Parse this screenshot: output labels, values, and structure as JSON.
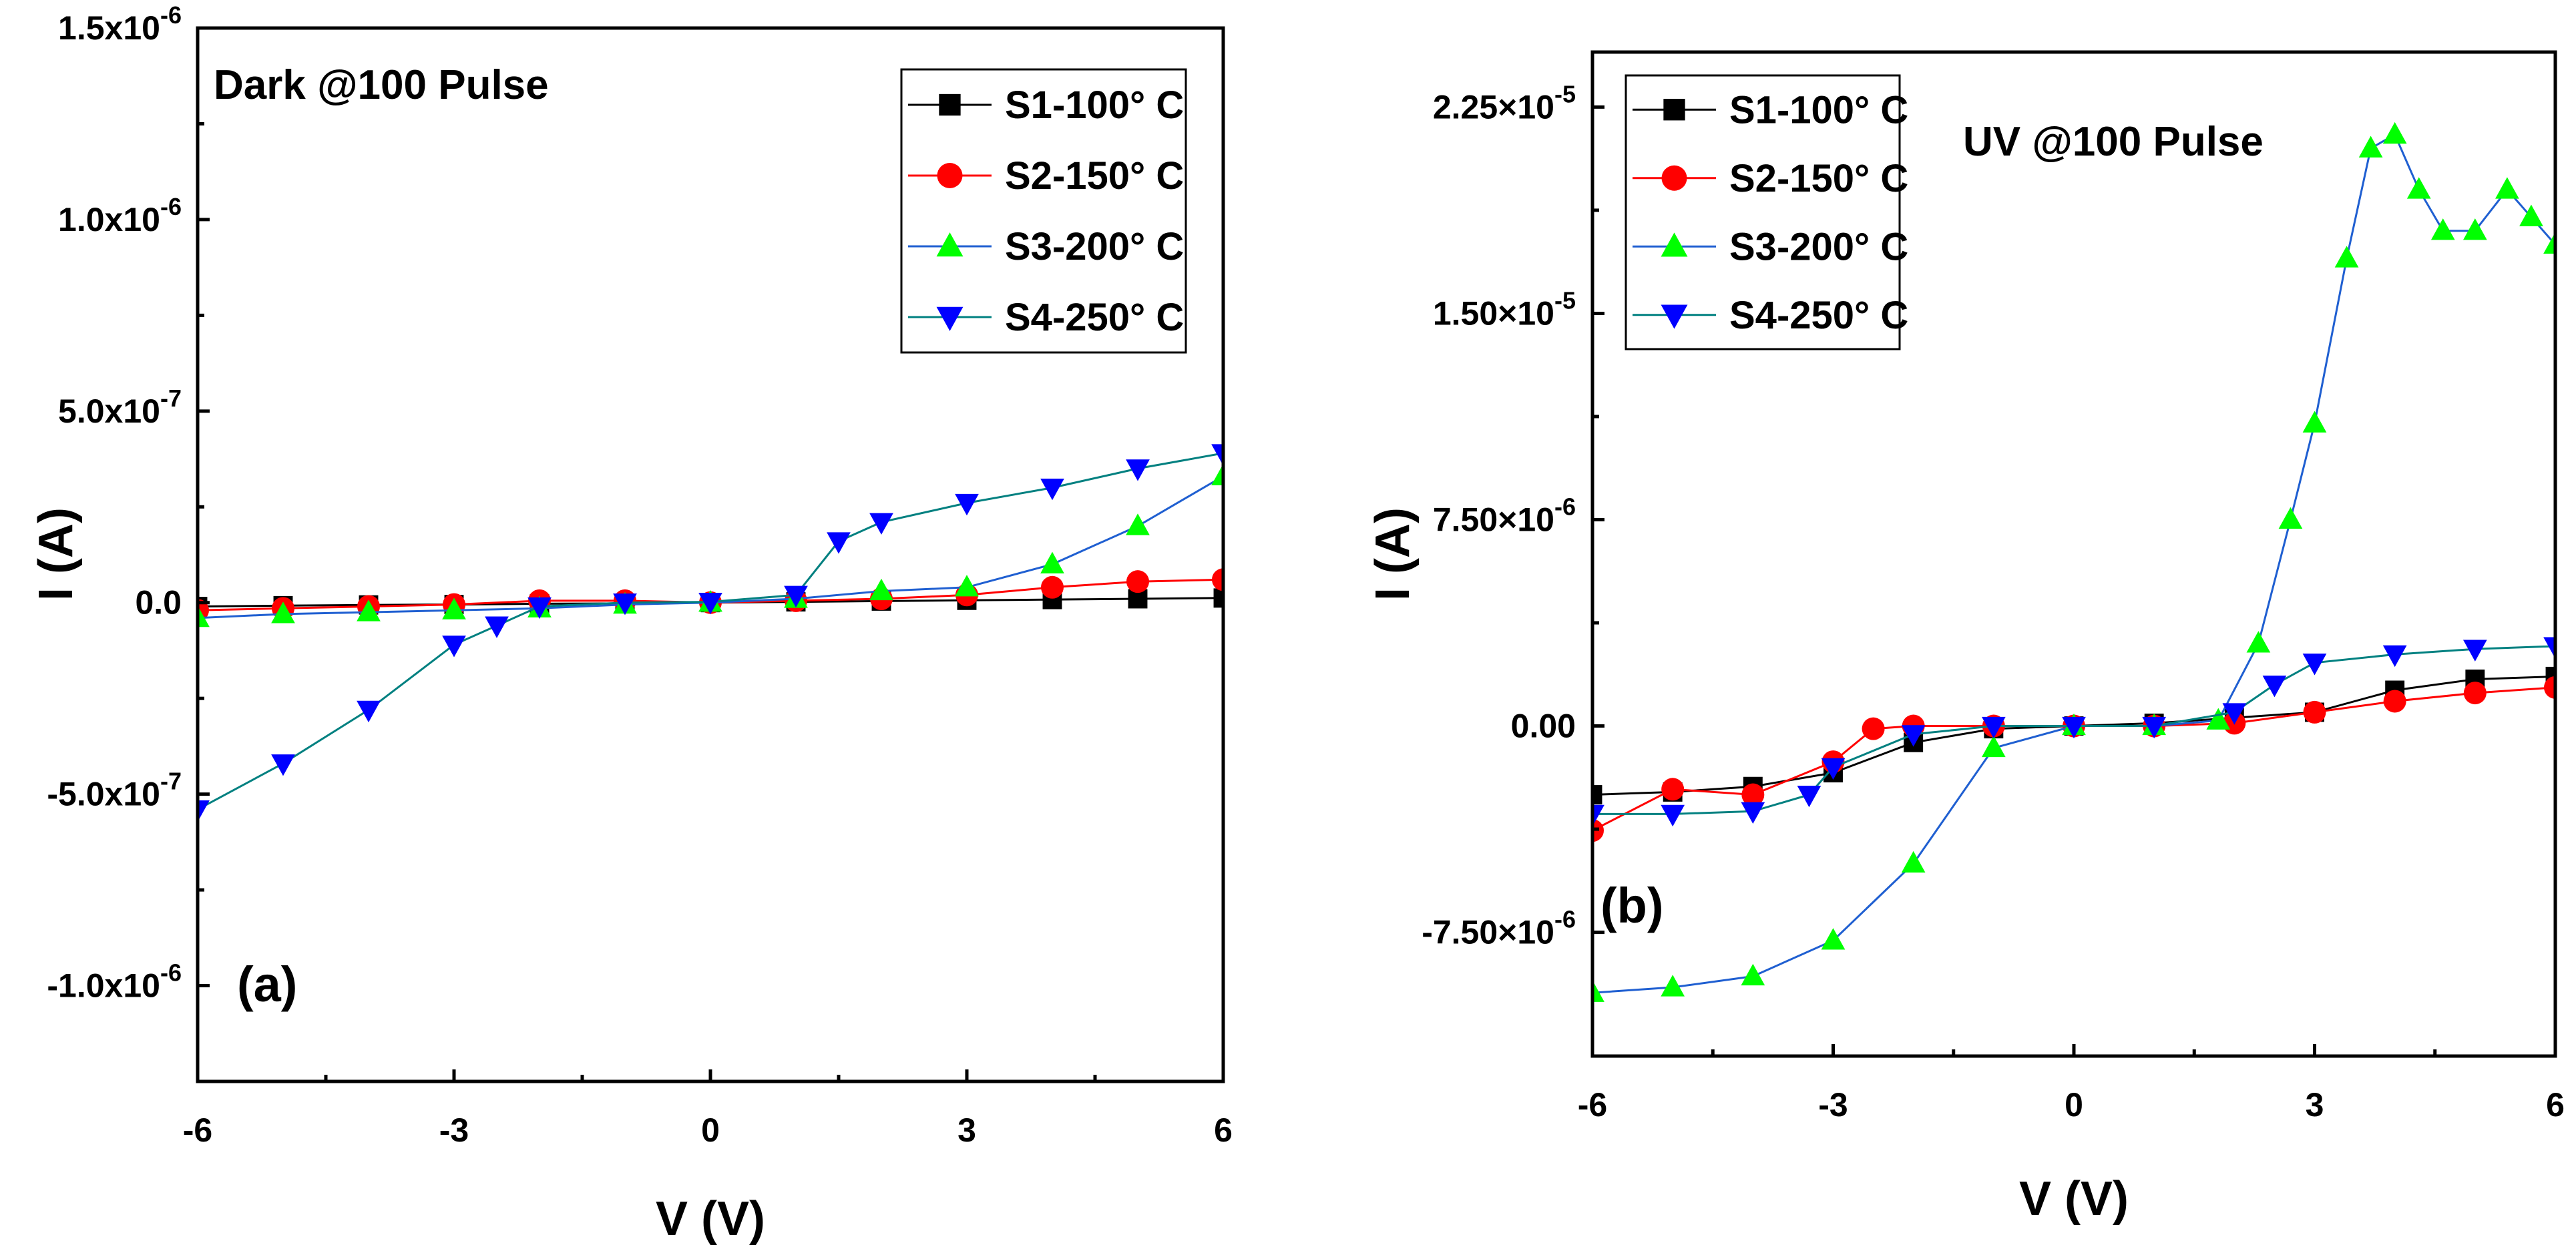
{
  "chart_data": [
    {
      "type": "line",
      "panel": "(a)",
      "annotation": "Dark @100 Pulse",
      "xlabel": "V (V)",
      "ylabel": "I (A)",
      "xlim": [
        -6,
        6
      ],
      "ylim": [
        -1.25e-06,
        1.5e-06
      ],
      "xticks": [
        {
          "value": -6,
          "label": "-6"
        },
        {
          "value": -3,
          "label": "-3"
        },
        {
          "value": 0,
          "label": "0"
        },
        {
          "value": 3,
          "label": "3"
        },
        {
          "value": 6,
          "label": "6"
        }
      ],
      "yticks": [
        {
          "value": 1.5e-06,
          "label": "1.5x10-6"
        },
        {
          "value": 1e-06,
          "label": "1.0x10-6"
        },
        {
          "value": 5e-07,
          "label": "5.0x10-7"
        },
        {
          "value": 0,
          "label": "0.0"
        },
        {
          "value": -5e-07,
          "label": "-5.0x10-7"
        },
        {
          "value": -1e-06,
          "label": "-1.0x10-6"
        }
      ],
      "legend_position": "top-right",
      "series": [
        {
          "name": "S1-100° C",
          "marker": "square",
          "color": "#000000",
          "line_color": "#000000",
          "x": [
            -6,
            -5,
            -4,
            -3,
            -2,
            -1,
            0,
            1,
            2,
            3,
            4,
            5,
            6
          ],
          "y": [
            -1e-08,
            -8e-09,
            -6e-09,
            -5e-09,
            -3e-09,
            -2e-09,
            0,
            2e-09,
            4e-09,
            6e-09,
            8e-09,
            1e-08,
            1.2e-08
          ]
        },
        {
          "name": "S2-150° C",
          "marker": "circle",
          "color": "#ff0000",
          "line_color": "#ff0000",
          "x": [
            -6,
            -5,
            -4,
            -3,
            -2,
            -1,
            0,
            1,
            2,
            3,
            4,
            5,
            6
          ],
          "y": [
            -2e-08,
            -1.5e-08,
            -1e-08,
            -5e-09,
            5e-09,
            5e-09,
            0,
            5e-09,
            1e-08,
            2e-08,
            4e-08,
            5.5e-08,
            6e-08
          ]
        },
        {
          "name": "S3-200° C",
          "marker": "triangle-up",
          "color": "#00ff00",
          "line_color": "#1f5fd1",
          "x": [
            -6,
            -5,
            -4,
            -3,
            -2,
            -1,
            0,
            1,
            2,
            3,
            4,
            5,
            6
          ],
          "y": [
            -4e-08,
            -3e-08,
            -2.5e-08,
            -2e-08,
            -1.5e-08,
            -5e-09,
            0,
            1e-08,
            3e-08,
            4e-08,
            1e-07,
            2e-07,
            3.3e-07
          ]
        },
        {
          "name": "S4-250° C",
          "marker": "triangle-down",
          "color": "#0000ff",
          "line_color": "#008080",
          "x": [
            -6,
            -5,
            -4,
            -3,
            -2.5,
            -2,
            -1,
            0,
            1,
            1.5,
            2,
            3,
            4,
            5,
            6
          ],
          "y": [
            -5.4e-07,
            -4.2e-07,
            -2.8e-07,
            -1.1e-07,
            -6e-08,
            -1e-08,
            0,
            2e-09,
            2e-08,
            1.6e-07,
            2.1e-07,
            2.6e-07,
            3e-07,
            3.5e-07,
            3.9e-07
          ]
        }
      ]
    },
    {
      "type": "line",
      "panel": "(b)",
      "annotation": "UV @100 Pulse",
      "xlabel": "V (V)",
      "ylabel": "I (A)",
      "xlim": [
        -6,
        6
      ],
      "ylim": [
        -1.2e-05,
        2.45e-05
      ],
      "xticks": [
        {
          "value": -6,
          "label": "-6"
        },
        {
          "value": -3,
          "label": "-3"
        },
        {
          "value": 0,
          "label": "0"
        },
        {
          "value": 3,
          "label": "3"
        },
        {
          "value": 6,
          "label": "6"
        }
      ],
      "yticks": [
        {
          "value": 2.25e-05,
          "label": "2.25×10-5"
        },
        {
          "value": 1.5e-05,
          "label": "1.50×10-5"
        },
        {
          "value": 7.5e-06,
          "label": "7.50×10-6"
        },
        {
          "value": 0,
          "label": "0.00"
        },
        {
          "value": -7.5e-06,
          "label": "-7.50×10-6"
        }
      ],
      "legend_position": "top-left",
      "series": [
        {
          "name": "S1-100° C",
          "marker": "square",
          "color": "#000000",
          "line_color": "#000000",
          "x": [
            -6,
            -5,
            -4,
            -3,
            -2,
            -1,
            0,
            1,
            2,
            3,
            4,
            5,
            6
          ],
          "y": [
            -2.5e-06,
            -2.4e-06,
            -2.2e-06,
            -1.7e-06,
            -6e-07,
            -1e-07,
            0,
            1e-07,
            3e-07,
            5e-07,
            1.3e-06,
            1.7e-06,
            1.8e-06
          ]
        },
        {
          "name": "S2-150° C",
          "marker": "circle",
          "color": "#ff0000",
          "line_color": "#ff0000",
          "x": [
            -6,
            -5,
            -4,
            -3,
            -2.5,
            -2,
            -1,
            0,
            1,
            2,
            3,
            4,
            5,
            6
          ],
          "y": [
            -3.8e-06,
            -2.3e-06,
            -2.5e-06,
            -1.3e-06,
            -1e-07,
            0,
            0,
            0,
            0,
            1e-07,
            5e-07,
            9e-07,
            1.2e-06,
            1.4e-06
          ]
        },
        {
          "name": "S3-200° C",
          "marker": "triangle-up",
          "color": "#00ff00",
          "line_color": "#1f5fd1",
          "x": [
            -6,
            -5,
            -4,
            -3,
            -2,
            -1,
            0,
            1,
            1.8,
            2.3,
            2.7,
            3,
            3.4,
            3.7,
            4,
            4.3,
            4.6,
            5,
            5.4,
            5.7,
            6
          ],
          "y": [
            -9.7e-06,
            -9.5e-06,
            -9.1e-06,
            -7.8e-06,
            -5e-06,
            -8e-07,
            0,
            0,
            2e-07,
            3e-06,
            7.5e-06,
            1.1e-05,
            1.7e-05,
            2.1e-05,
            2.15e-05,
            1.95e-05,
            1.8e-05,
            1.8e-05,
            1.95e-05,
            1.85e-05,
            1.75e-05
          ]
        },
        {
          "name": "S4-250° C",
          "marker": "triangle-down",
          "color": "#0000ff",
          "line_color": "#008080",
          "x": [
            -6,
            -5,
            -4,
            -3.3,
            -3,
            -2,
            -1,
            0,
            1,
            2,
            2.5,
            3,
            4,
            5,
            6
          ],
          "y": [
            -3.2e-06,
            -3.2e-06,
            -3.1e-06,
            -2.5e-06,
            -1.5e-06,
            -3e-07,
            0,
            0,
            0,
            5e-07,
            1.5e-06,
            2.3e-06,
            2.6e-06,
            2.8e-06,
            2.9e-06
          ]
        }
      ]
    }
  ]
}
